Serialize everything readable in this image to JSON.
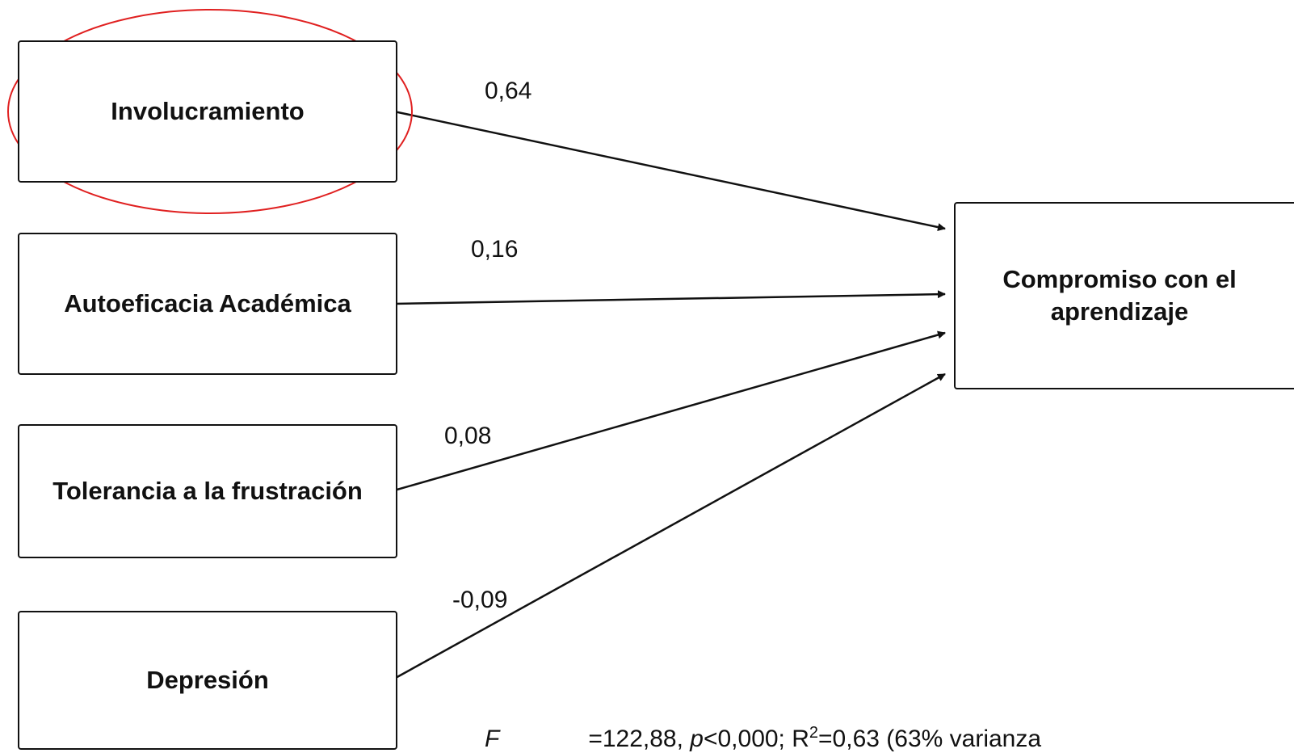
{
  "predictors": [
    {
      "label": "Involucramiento",
      "coef": "0,64"
    },
    {
      "label": "Autoeficacia Académica",
      "coef": "0,16"
    },
    {
      "label": "Tolerancia a la frustración",
      "coef": "0,08"
    },
    {
      "label": "Depresión",
      "coef": "-0,09"
    }
  ],
  "outcome": {
    "label": "Compromiso con el aprendizaje"
  },
  "stats_line": {
    "f_label": "F",
    "f_rest": "=122,88, ",
    "p_label": "p",
    "p_rest": "<0,000; R",
    "sup": "2",
    "r_rest": "=0,63 (63% varianza"
  },
  "colors": {
    "highlight": "#e02020",
    "line": "#111111"
  }
}
